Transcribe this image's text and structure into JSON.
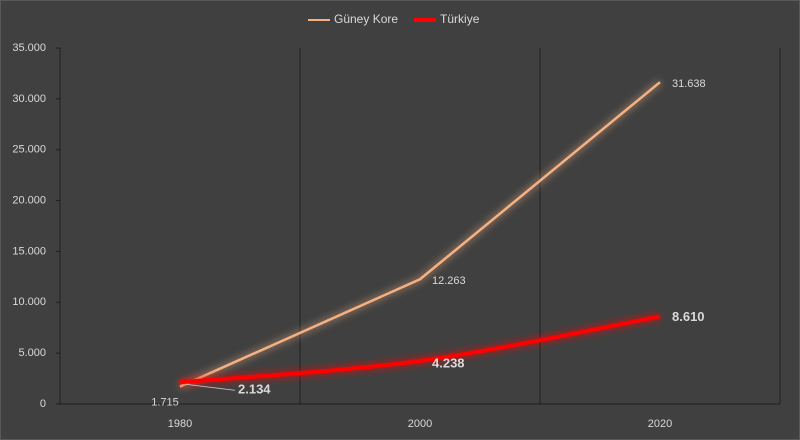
{
  "chart_data": {
    "type": "line",
    "categories": [
      "1980",
      "2000",
      "2020"
    ],
    "series": [
      {
        "name": "Güney Kore",
        "color": "#f4b183",
        "values": [
          1715,
          12263,
          31638
        ],
        "value_labels": [
          "1.715",
          "12.263",
          "31.638"
        ]
      },
      {
        "name": "Türkiye",
        "color": "#ff0000",
        "values": [
          2134,
          4238,
          8610
        ],
        "value_labels": [
          "2.134",
          "4.238",
          "8.610"
        ],
        "smooth": true
      }
    ],
    "ylim": [
      0,
      35000
    ],
    "yticks": [
      0,
      {
        "value": 5000,
        "label": "5.000"
      },
      {
        "value": 10000,
        "label": "10.000"
      },
      {
        "value": 15000,
        "label": "15.000"
      },
      {
        "value": 20000,
        "label": "20.000"
      },
      {
        "value": 25000,
        "label": "25.000"
      },
      {
        "value": 30000,
        "label": "30.000"
      },
      {
        "value": 35000,
        "label": "35.000"
      }
    ],
    "legend": "top"
  }
}
